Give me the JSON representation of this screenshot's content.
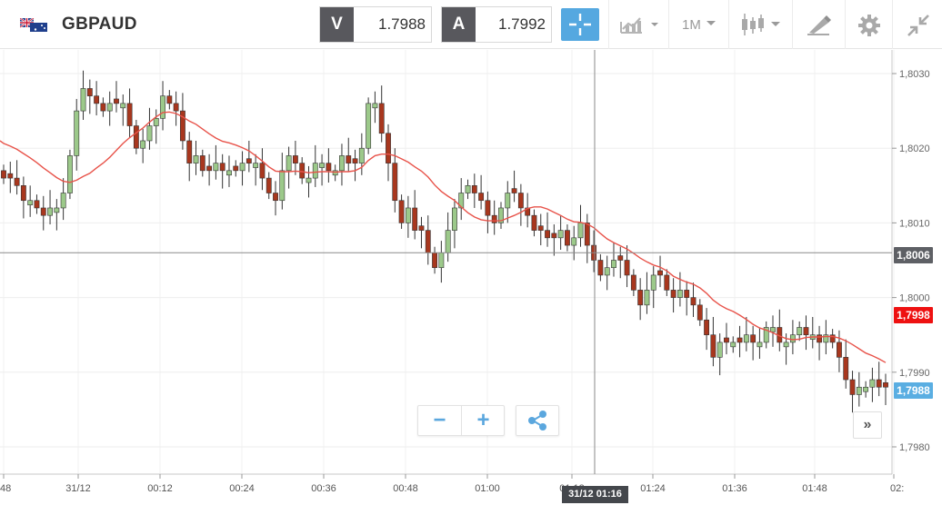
{
  "header": {
    "symbol": "GBPAUD",
    "bid_label": "V",
    "bid_value": "1.7988",
    "ask_label": "A",
    "ask_value": "1.7992",
    "timeframe": "1M",
    "icons": [
      "gb-au-flag-icon",
      "crosshair-icon",
      "chart-type-icon",
      "candlestick-icon",
      "drawing-tool-icon",
      "gear-icon",
      "collapse-icon"
    ]
  },
  "chart": {
    "colors": {
      "up": "#9cc98a",
      "down": "#a8371e",
      "ma": "#e8534a",
      "bid_tag": "#5aaee2",
      "ma_tag": "#ee1111",
      "cross_tag": "#5e6065"
    },
    "price_scale": [
      "1,8030",
      "1,8020",
      "1,8010",
      "1,8000",
      "1,7990",
      "1,7980"
    ],
    "time_scale": [
      "48",
      "31/12",
      "00:12",
      "00:24",
      "00:36",
      "00:48",
      "01:00",
      "01:12",
      "01:24",
      "01:36",
      "01:48",
      "02:"
    ],
    "crosshair_price_tag": "1,8006",
    "ma_tag": "1,7998",
    "bid_tag": "1,7988",
    "crosshair_time_tag": "31/12 01:16",
    "zoom_out_label": "−",
    "zoom_in_label": "+",
    "scroll_right_label": "»"
  },
  "chart_data": {
    "type": "candlestick",
    "ylim": [
      1.7976,
      1.8035
    ],
    "x_labels": [
      "31/12",
      "00:12",
      "00:24",
      "00:36",
      "00:48",
      "01:00",
      "01:12",
      "01:24",
      "01:36",
      "01:48",
      "02:"
    ],
    "closes": [
      1.8016,
      1.8016,
      1.8015,
      1.8013,
      1.8013,
      1.8012,
      1.8011,
      1.8012,
      1.8012,
      1.8014,
      1.8019,
      1.8025,
      1.8028,
      1.8027,
      1.8026,
      1.8025,
      1.8026,
      1.8026,
      1.8026,
      1.8023,
      1.802,
      1.8021,
      1.8023,
      1.8024,
      1.8027,
      1.8026,
      1.8025,
      1.8021,
      1.8018,
      1.8019,
      1.8017,
      1.8017,
      1.8018,
      1.8017,
      1.8017,
      1.8017,
      1.8018,
      1.8018,
      1.8018,
      1.8016,
      1.8014,
      1.8013,
      1.8017,
      1.8019,
      1.8018,
      1.8016,
      1.8016,
      1.8018,
      1.8018,
      1.8017,
      1.8017,
      1.8019,
      1.8018,
      1.8018,
      1.802,
      1.8026,
      1.8026,
      1.8022,
      1.8018,
      1.8013,
      1.801,
      1.8012,
      1.8009,
      1.8009,
      1.8006,
      1.8004,
      1.8006,
      1.8009,
      1.8012,
      1.8014,
      1.8015,
      1.8014,
      1.8013,
      1.8011,
      1.801,
      1.8012,
      1.8014,
      1.8014,
      1.8012,
      1.8011,
      1.8009,
      1.8009,
      1.8008,
      1.8008,
      1.8009,
      1.8007,
      1.8008,
      1.801,
      1.8007,
      1.8005,
      1.8003,
      1.8004,
      1.8005,
      1.8005,
      1.8003,
      1.8001,
      1.7999,
      1.8001,
      1.8003,
      1.8003,
      1.8001,
      1.8,
      1.8001,
      1.8,
      1.7999,
      1.7997,
      1.7995,
      1.7992,
      1.7994,
      1.7994,
      1.7994,
      1.7994,
      1.7995,
      1.7994,
      1.7994,
      1.7996,
      1.7996,
      1.7994,
      1.7994,
      1.7995,
      1.7996,
      1.7995,
      1.7995,
      1.7994,
      1.7995,
      1.7994,
      1.7992,
      1.7989,
      1.7987,
      1.7988,
      1.7988,
      1.7989,
      1.7988,
      1.7988
    ],
    "ma_series": "moving average (red line)"
  }
}
